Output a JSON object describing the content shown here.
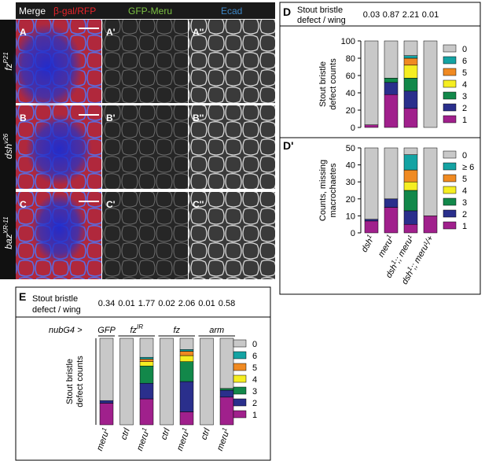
{
  "colors": {
    "c0": "#c8c8c8",
    "c1": "#a0208c",
    "c2": "#2a2f8c",
    "c3": "#12884a",
    "c4": "#f5ee22",
    "c5": "#f08a22",
    "c6": "#14a3a3",
    "red": "#e8232a",
    "green": "#7cc242",
    "blue": "#3d86c6"
  },
  "micro": {
    "headers": {
      "merge": "Merge",
      "bgal_rfp": "β-gal/RFP",
      "gfp_meru": "GFP-Meru",
      "ecad": "Ecad"
    },
    "rows": [
      {
        "genotype": "fz",
        "sup": "P21",
        "letters": [
          "A",
          "A'",
          "A''"
        ]
      },
      {
        "genotype": "dsh",
        "sup": "v26",
        "letters": [
          "B",
          "B'",
          "B''"
        ]
      },
      {
        "genotype": "baz",
        "sup": "XR-11",
        "letters": [
          "C",
          "C'",
          "C''"
        ]
      }
    ]
  },
  "chart_data": [
    {
      "panel": "D",
      "type": "bar",
      "stacked": true,
      "header": {
        "label_line1": "Stout bristle",
        "label_line2": "defect / wing",
        "values": [
          "0.03",
          "0.87",
          "2.21",
          "0.01"
        ]
      },
      "ylabel_lines": [
        "Stout bristle",
        "defect counts"
      ],
      "ylim": [
        0,
        100
      ],
      "yticks": [
        "0",
        "20",
        "40",
        "60",
        "80",
        "100"
      ],
      "legend": [
        "0",
        "6",
        "5",
        "4",
        "3",
        "2",
        "1"
      ],
      "series": [
        {
          "name": "1",
          "values": [
            3,
            38,
            22,
            0
          ]
        },
        {
          "name": "2",
          "values": [
            0,
            14,
            20,
            0
          ]
        },
        {
          "name": "3",
          "values": [
            0,
            5,
            15,
            0
          ]
        },
        {
          "name": "4",
          "values": [
            0,
            0,
            15,
            0
          ]
        },
        {
          "name": "5",
          "values": [
            0,
            0,
            8,
            0
          ]
        },
        {
          "name": "6",
          "values": [
            0,
            0,
            3,
            0
          ]
        },
        {
          "name": "0",
          "values": [
            97,
            43,
            17,
            100
          ]
        }
      ]
    },
    {
      "panel": "D'",
      "type": "bar",
      "stacked": true,
      "categories": [
        {
          "base": "dsh",
          "sup": "1",
          "rest": ""
        },
        {
          "base": "meru",
          "sup": "1",
          "rest": ""
        },
        {
          "base": "dsh",
          "sup": "1",
          "rest": ";; meru¹"
        },
        {
          "base": "dsh",
          "sup": "1",
          "rest": ";; meru¹/+"
        }
      ],
      "ylabel_lines": [
        "Counts, missing",
        "macrochaetes"
      ],
      "ylim": [
        0,
        50
      ],
      "yticks": [
        "0",
        "10",
        "20",
        "30",
        "40",
        "50"
      ],
      "legend": [
        "0",
        "≥ 6",
        "5",
        "4",
        "3",
        "2",
        "1"
      ],
      "series": [
        {
          "name": "1",
          "values": [
            7,
            15,
            5,
            10
          ]
        },
        {
          "name": "2",
          "values": [
            1,
            5,
            8,
            0
          ]
        },
        {
          "name": "3",
          "values": [
            0,
            0,
            12,
            0
          ]
        },
        {
          "name": "4",
          "values": [
            0,
            0,
            5,
            0
          ]
        },
        {
          "name": "5",
          "values": [
            0,
            0,
            7,
            0
          ]
        },
        {
          "name": "≥ 6",
          "values": [
            0,
            0,
            9,
            0
          ]
        },
        {
          "name": "0",
          "values": [
            42,
            30,
            4,
            40
          ]
        }
      ]
    },
    {
      "panel": "E",
      "type": "bar",
      "stacked": true,
      "header": {
        "label_line1": "Stout bristle",
        "label_line2": "defect / wing",
        "values": [
          "0.34",
          "0.01",
          "1.77",
          "0.02",
          "2.06",
          "0.01",
          "0.58"
        ]
      },
      "prefix": "nubG4 >",
      "groups": [
        {
          "name": "GFP",
          "sup": "",
          "span": [
            0,
            0
          ]
        },
        {
          "name": "fz",
          "sup": "IR",
          "span": [
            1,
            2
          ]
        },
        {
          "name": "fz",
          "sup": "",
          "span": [
            3,
            4
          ]
        },
        {
          "name": "arm",
          "sup": "",
          "span": [
            5,
            6
          ]
        }
      ],
      "categories": [
        {
          "base": "meru",
          "sup": "1"
        },
        {
          "base": "ctrl",
          "sup": ""
        },
        {
          "base": "meru",
          "sup": "1"
        },
        {
          "base": "ctrl",
          "sup": ""
        },
        {
          "base": "meru",
          "sup": "1"
        },
        {
          "base": "ctrl",
          "sup": ""
        },
        {
          "base": "meru",
          "sup": "1"
        }
      ],
      "ylabel_lines": [
        "Stout bristle",
        "defect counts"
      ],
      "ylim": [
        0,
        100
      ],
      "legend": [
        "0",
        "6",
        "5",
        "4",
        "3",
        "2",
        "1"
      ],
      "series": [
        {
          "name": "1",
          "values": [
            25,
            0,
            30,
            0,
            15,
            0,
            32
          ]
        },
        {
          "name": "2",
          "values": [
            3,
            0,
            18,
            0,
            35,
            0,
            8
          ]
        },
        {
          "name": "3",
          "values": [
            0,
            0,
            20,
            0,
            23,
            0,
            2
          ]
        },
        {
          "name": "4",
          "values": [
            0,
            0,
            5,
            0,
            7,
            0,
            0
          ]
        },
        {
          "name": "5",
          "values": [
            0,
            0,
            3,
            0,
            5,
            0,
            0
          ]
        },
        {
          "name": "6",
          "values": [
            0,
            0,
            2,
            0,
            2,
            0,
            0
          ]
        },
        {
          "name": "0",
          "values": [
            72,
            100,
            22,
            100,
            13,
            100,
            58
          ]
        }
      ]
    }
  ]
}
